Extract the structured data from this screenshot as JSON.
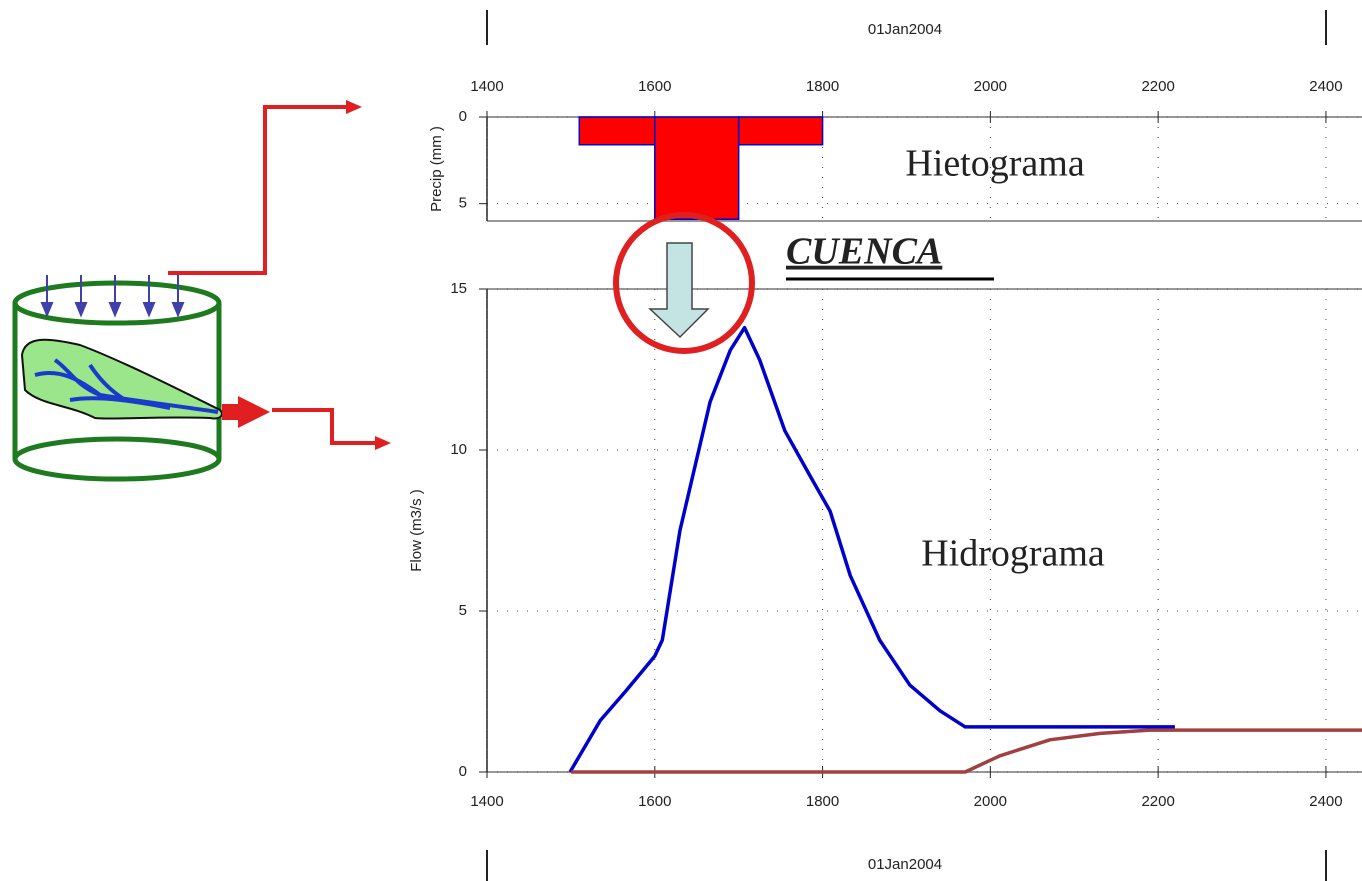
{
  "chart_data": [
    {
      "type": "histogram",
      "xlabel": "01Jan2004",
      "ylabel": "Precip (mm )",
      "annotation": "Hietograma",
      "bins": [
        1510,
        1600,
        1700,
        1800
      ],
      "values": [
        1.6,
        5.9,
        1.6
      ],
      "color": "#ff0000",
      "edgecolor": "#0000cc",
      "xlim": [
        1400,
        2443
      ],
      "xticks": [
        1400,
        1600,
        1800,
        2000,
        2200,
        2400
      ],
      "ylim": [
        0,
        6
      ],
      "yticks": [
        0,
        5
      ],
      "y_inverted": true,
      "grid": true
    },
    {
      "type": "line",
      "xlabel": "01Jan2004",
      "ylabel": "Flow (m3/s )",
      "annotation": "Hidrograma",
      "series": [
        {
          "color": "#0000cc",
          "x": [
            1499,
            1535,
            1565,
            1600,
            1609,
            1630,
            1666,
            1690,
            1707,
            1725,
            1755,
            1785,
            1809,
            1833,
            1868,
            1904,
            1940,
            1970,
            2220
          ],
          "values": [
            0,
            1.6,
            2.5,
            3.6,
            4.1,
            7.5,
            11.5,
            13.1,
            13.8,
            12.8,
            10.6,
            9.2,
            8.1,
            6.1,
            4.1,
            2.7,
            1.9,
            1.4,
            1.4
          ]
        },
        {
          "color": "#a04040",
          "x": [
            1500,
            1970,
            2011,
            2071,
            2131,
            2190,
            2443
          ],
          "values": [
            0,
            0,
            0.5,
            1.0,
            1.2,
            1.3,
            1.3
          ]
        }
      ],
      "xlim": [
        1400,
        2443
      ],
      "xticks": [
        1400,
        1600,
        1800,
        2000,
        2200,
        2400
      ],
      "ylim": [
        0,
        15
      ],
      "yticks": [
        0,
        5,
        10,
        15
      ],
      "grid": true
    }
  ],
  "cuenca_label": "CUENCA"
}
